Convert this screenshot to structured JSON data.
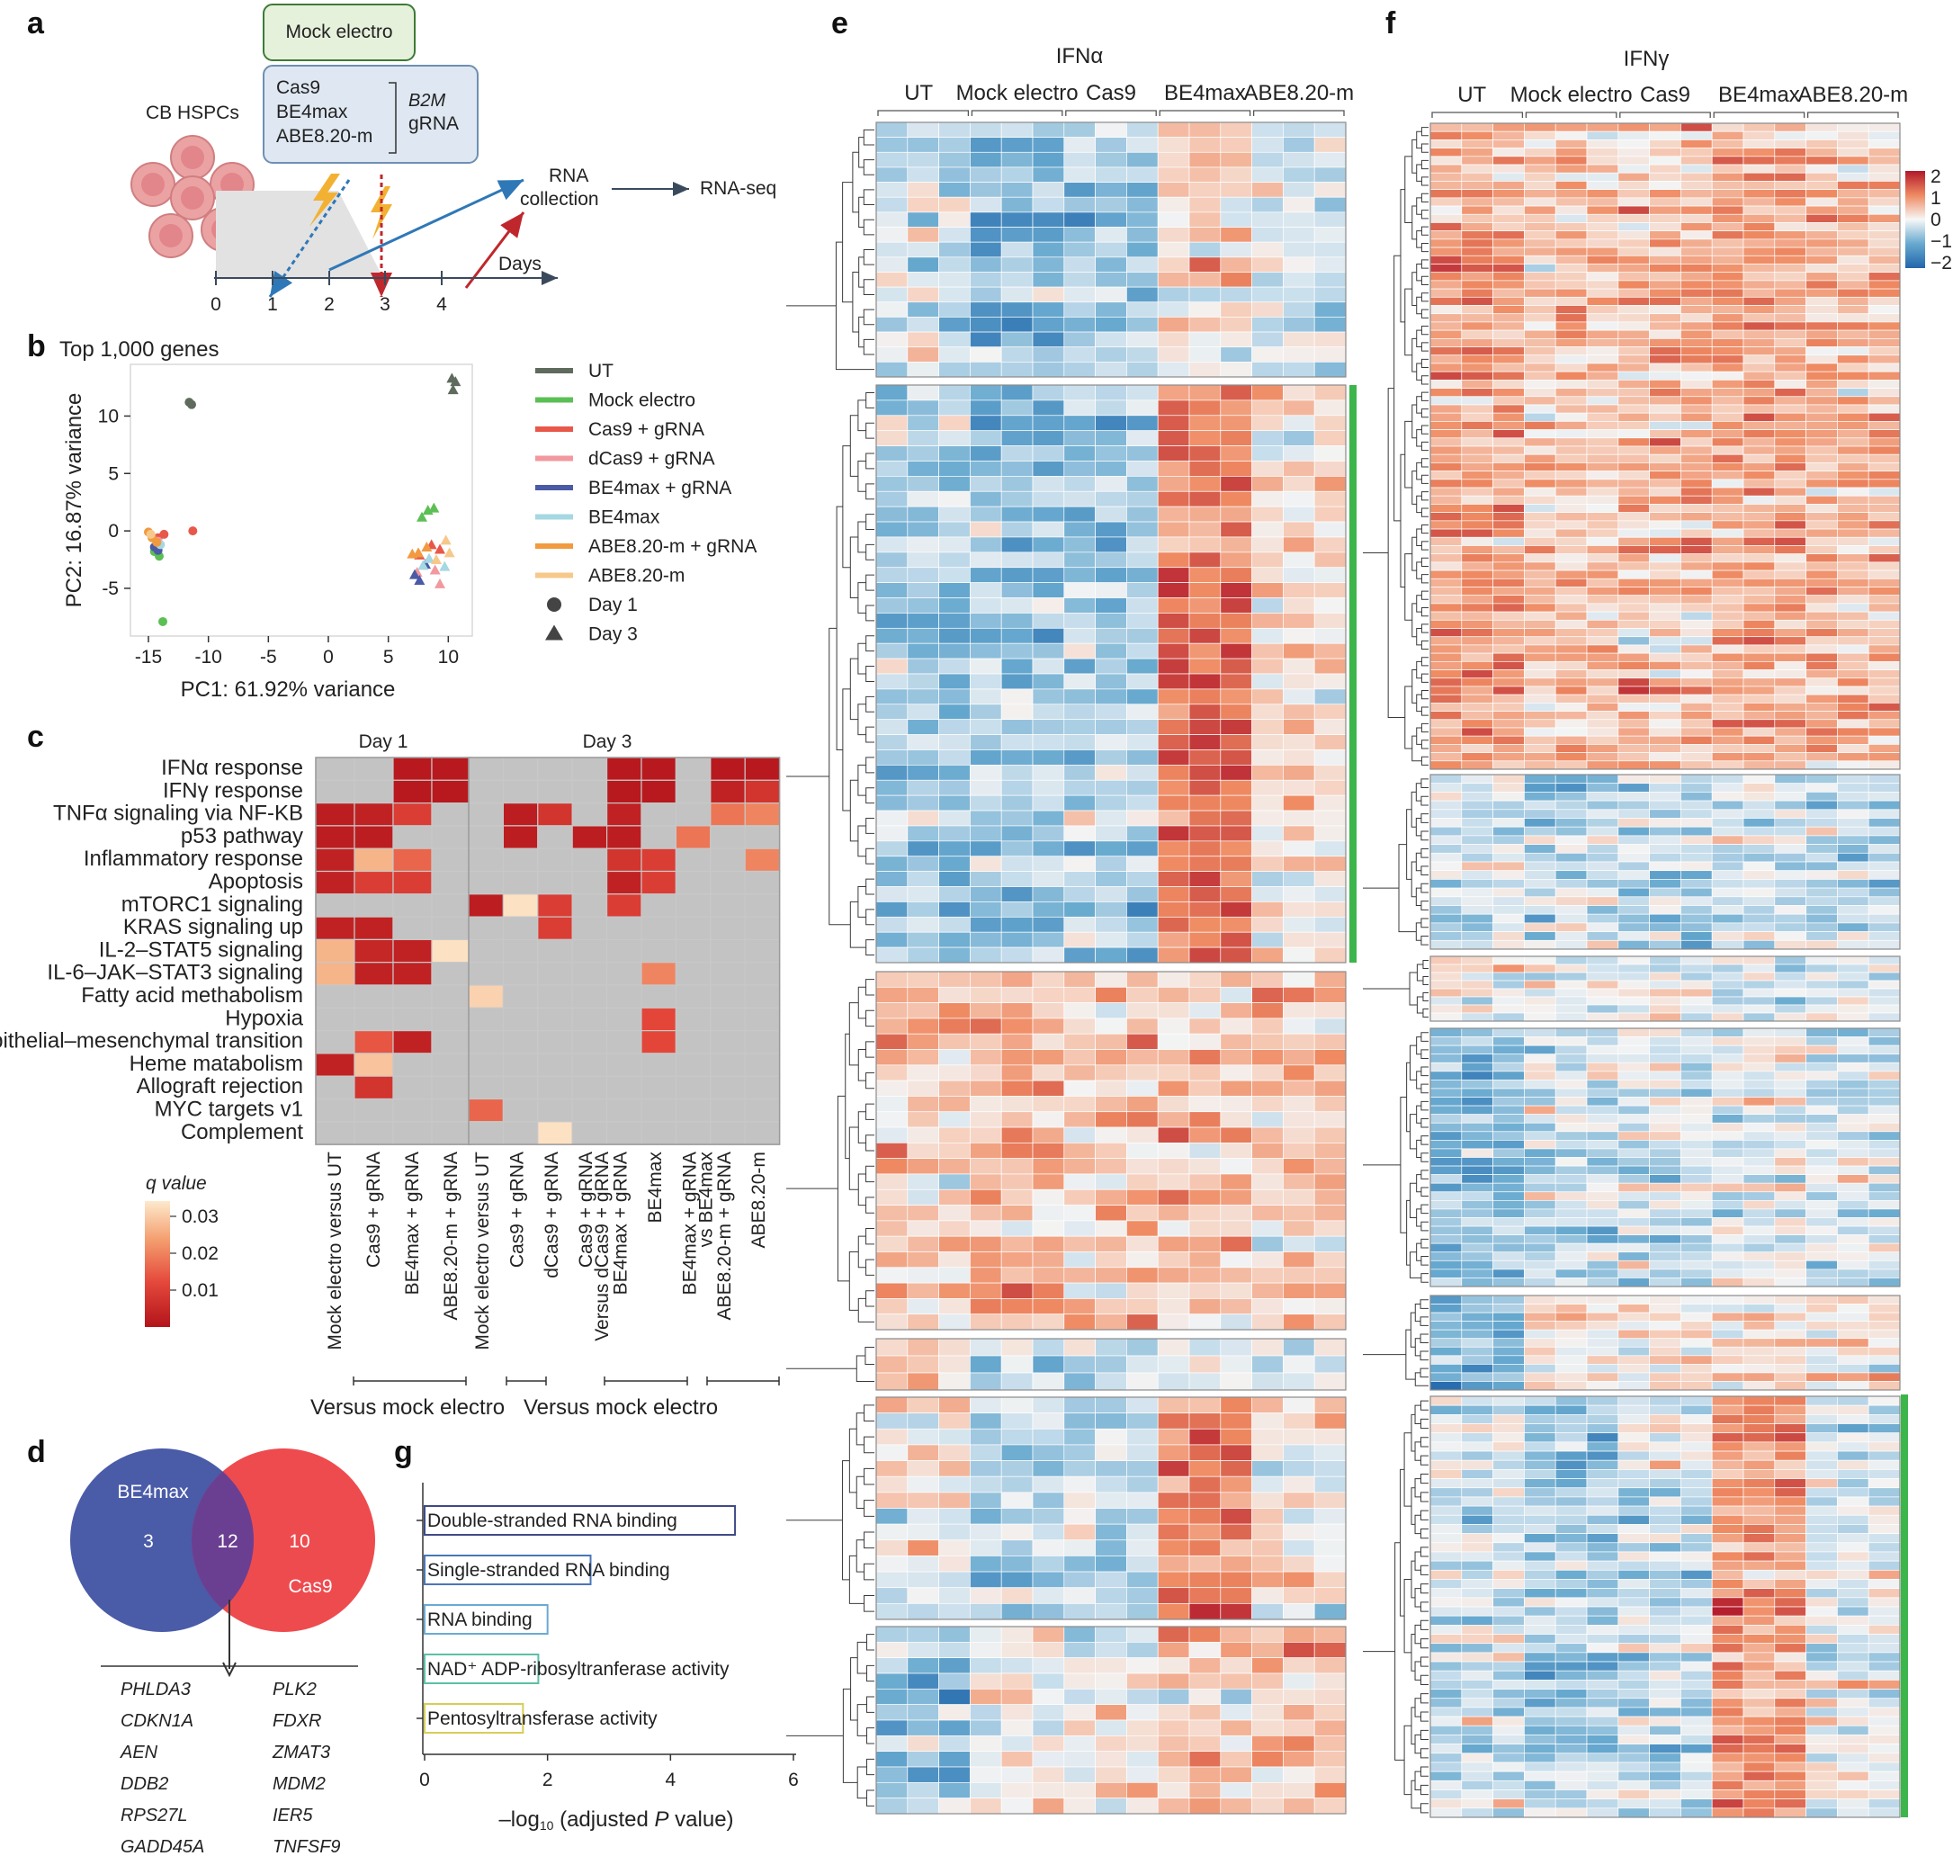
{
  "panel_labels": [
    "a",
    "b",
    "c",
    "d",
    "e",
    "f",
    "g"
  ],
  "panel_a": {
    "mock_label": "Mock electro",
    "editors": [
      "Cas9",
      "BE4max",
      "ABE8.20-m"
    ],
    "gene": "B2M",
    "gene_suffix": "gRNA",
    "cells_label": "CB HSPCs",
    "rna_collection_1": "RNA",
    "rna_collection_2": "collection",
    "rna_seq": "RNA-seq",
    "days_label": "Days",
    "ticks": [
      "0",
      "1",
      "2",
      "3",
      "4"
    ]
  },
  "colors": {
    "ut": "#5f6b5d",
    "mock": "#5cbf55",
    "cas9_grna": "#e8584a",
    "dcas9_grna": "#f2989f",
    "be4max_grna": "#4b5aa5",
    "be4max": "#a5d8e2",
    "abe_grna": "#f29a3f",
    "abe": "#f6c88a",
    "green_bar": "#3cb54a",
    "venn_blue": "#4a5ba8",
    "venn_red": "#ee4b4f",
    "venn_overlap": "#6a3f92"
  },
  "chart_data": [
    {
      "id": "b",
      "type": "scatter",
      "title": "Top 1,000 genes",
      "xlabel": "PC1: 61.92% variance",
      "ylabel": "PC2: 16.87% variance",
      "xlim": [
        -16.5,
        12
      ],
      "ylim": [
        -9,
        14.5
      ],
      "xticks": [
        -15,
        -10,
        -5,
        0,
        5,
        10
      ],
      "yticks": [
        -5,
        0,
        5,
        10
      ],
      "legend": [
        "UT",
        "Mock electro",
        "Cas9 + gRNA",
        "dCas9 + gRNA",
        "BE4max + gRNA",
        "BE4max",
        "ABE8.20-m + gRNA",
        "ABE8.20-m",
        "Day 1",
        "Day 3"
      ],
      "legend_colors": [
        "#5f6b5d",
        "#5cbf55",
        "#e8584a",
        "#f2989f",
        "#4b5aa5",
        "#a5d8e2",
        "#f29a3f",
        "#f6c88a"
      ],
      "series": [
        {
          "name": "UT",
          "day1": [
            [
              -11.6,
              11.2
            ],
            [
              -11.4,
              11.0
            ]
          ],
          "day3": [
            [
              10.3,
              13.3
            ],
            [
              10.6,
              13.0
            ],
            [
              10.4,
              12.3
            ]
          ]
        },
        {
          "name": "Mock electro",
          "day1": [
            [
              -14.1,
              -2.2
            ],
            [
              -13.8,
              -7.9
            ],
            [
              -14.5,
              -1.8
            ]
          ],
          "day3": [
            [
              8.3,
              1.8
            ],
            [
              8.8,
              2.0
            ],
            [
              7.8,
              1.2
            ]
          ]
        },
        {
          "name": "Cas9 + gRNA",
          "day1": [
            [
              -11.3,
              0.0
            ],
            [
              -13.7,
              -0.3
            ],
            [
              -14.2,
              -0.6
            ]
          ],
          "day3": [
            [
              8.6,
              -1.2
            ],
            [
              9.3,
              -1.6
            ],
            [
              7.6,
              -2.1
            ]
          ]
        },
        {
          "name": "dCas9 + gRNA",
          "day1": [
            [
              -14.2,
              -0.9
            ]
          ],
          "day3": [
            [
              8.9,
              -3.4
            ],
            [
              9.3,
              -4.6
            ],
            [
              7.4,
              -3.6
            ]
          ]
        },
        {
          "name": "BE4max + gRNA",
          "day1": [
            [
              -14.5,
              -1.4
            ],
            [
              -14.2,
              -1.7
            ]
          ],
          "day3": [
            [
              7.2,
              -3.8
            ],
            [
              7.6,
              -4.3
            ],
            [
              8.1,
              -2.9
            ]
          ]
        },
        {
          "name": "BE4max",
          "day1": [
            [
              -14.0,
              -1.2
            ]
          ],
          "day3": [
            [
              9.7,
              -3.1
            ],
            [
              7.9,
              -3.0
            ],
            [
              8.4,
              -2.4
            ]
          ]
        },
        {
          "name": "ABE8.20-m + gRNA",
          "day1": [
            [
              -15.0,
              -0.1
            ],
            [
              -14.7,
              -0.6
            ],
            [
              -14.3,
              -1.0
            ]
          ],
          "day3": [
            [
              7.0,
              -2.0
            ],
            [
              7.5,
              -1.9
            ],
            [
              8.2,
              -1.4
            ]
          ]
        },
        {
          "name": "ABE8.20-m",
          "day1": [
            [
              -14.8,
              -0.3
            ]
          ],
          "day3": [
            [
              9.8,
              -0.8
            ],
            [
              9.0,
              -2.5
            ],
            [
              10.1,
              -1.9
            ]
          ]
        }
      ]
    },
    {
      "id": "c",
      "type": "heatmap",
      "day1_title": "Day 1",
      "day3_title": "Day 3",
      "rows": [
        "IFNα response",
        "IFNγ response",
        "TNFα signaling via NF-KB",
        "p53 pathway",
        "Inflammatory response",
        "Apoptosis",
        "mTORC1 signaling",
        "KRAS signaling up",
        "IL-2–STAT5 signaling",
        "IL-6–JAK–STAT3 signaling",
        "Fatty acid methabolism",
        "Hypoxia",
        "Epithelial–mesenchymal transition",
        "Heme matabolism",
        "Allograft rejection",
        "MYC targets v1",
        "Complement"
      ],
      "day1_columns": [
        "Mock electro versus UT",
        "Cas9 + gRNA",
        "BE4max + gRNA",
        "ABE8.20-m + gRNA"
      ],
      "day3_columns": [
        "Mock electro versus UT",
        "Cas9 + gRNA",
        "dCas9 + gRNA",
        "Cas9 + gRNA",
        "Versus dCas9 + gRNA",
        "BE4max + gRNA",
        "BE4max",
        "BE4max + gRNA",
        "vs BE4max",
        "ABE8.20-m + gRNA",
        "ABE8.20-m"
      ],
      "day3_column_slots": [
        0,
        1,
        2,
        3,
        3,
        4,
        5,
        6,
        6,
        7,
        8
      ],
      "bracket_label_1": "Versus mock electro",
      "bracket_label_2": "Versus mock electro",
      "colorbar_title": "q value",
      "colorbar_ticks": [
        "0.03",
        "0.02",
        "0.01"
      ],
      "q_range": [
        0.003,
        0.035
      ],
      "day1_values": [
        [
          null,
          null,
          0.004,
          0.004
        ],
        [
          null,
          null,
          0.004,
          0.004
        ],
        [
          0.005,
          0.006,
          0.012,
          null
        ],
        [
          0.005,
          0.005,
          null,
          null
        ],
        [
          0.006,
          0.028,
          0.018,
          null
        ],
        [
          0.006,
          0.012,
          0.012,
          null
        ],
        [
          null,
          null,
          null,
          null
        ],
        [
          0.006,
          0.006,
          null,
          null
        ],
        [
          0.028,
          0.007,
          0.006,
          0.034
        ],
        [
          0.028,
          0.006,
          0.006,
          null
        ],
        [
          null,
          null,
          null,
          null
        ],
        [
          null,
          null,
          null,
          null
        ],
        [
          null,
          0.016,
          0.006,
          null
        ],
        [
          0.006,
          0.03,
          null,
          null
        ],
        [
          null,
          0.01,
          null,
          null
        ],
        [
          null,
          null,
          null,
          null
        ],
        [
          null,
          null,
          null,
          null
        ]
      ],
      "day3_values": [
        [
          null,
          null,
          null,
          null,
          0.004,
          0.004,
          null,
          0.004,
          0.004
        ],
        [
          null,
          null,
          null,
          null,
          0.004,
          0.004,
          null,
          0.006,
          0.01
        ],
        [
          null,
          0.005,
          0.01,
          null,
          0.006,
          null,
          null,
          0.02,
          0.022
        ],
        [
          null,
          0.005,
          null,
          0.005,
          0.005,
          null,
          0.02,
          null,
          null
        ],
        [
          null,
          null,
          null,
          null,
          0.01,
          0.012,
          null,
          null,
          0.022
        ],
        [
          null,
          null,
          null,
          null,
          0.006,
          0.012,
          null,
          null,
          null
        ],
        [
          0.005,
          0.034,
          0.012,
          null,
          0.012,
          null,
          null,
          null,
          null
        ],
        [
          null,
          null,
          0.012,
          null,
          null,
          null,
          null,
          null,
          null
        ],
        [
          null,
          null,
          null,
          null,
          null,
          null,
          null,
          null,
          null
        ],
        [
          null,
          null,
          null,
          null,
          null,
          0.022,
          null,
          null,
          null
        ],
        [
          0.032,
          null,
          null,
          null,
          null,
          null,
          null,
          null,
          null
        ],
        [
          null,
          null,
          null,
          null,
          null,
          0.014,
          null,
          null,
          null
        ],
        [
          null,
          null,
          null,
          null,
          null,
          0.014,
          null,
          null,
          null
        ],
        [
          null,
          null,
          null,
          null,
          null,
          null,
          null,
          null,
          null
        ],
        [
          null,
          null,
          null,
          null,
          null,
          null,
          null,
          null,
          null
        ],
        [
          0.018,
          null,
          null,
          null,
          null,
          null,
          null,
          null,
          null
        ],
        [
          null,
          null,
          0.034,
          null,
          null,
          null,
          null,
          null,
          null
        ]
      ]
    },
    {
      "id": "d",
      "type": "venn",
      "sets": [
        {
          "name": "BE4max",
          "only": "3"
        },
        {
          "name": "Cas9",
          "only": "10"
        }
      ],
      "overlap": "12",
      "genes_left": [
        "PHLDA3",
        "CDKN1A",
        "AEN",
        "DDB2",
        "RPS27L",
        "GADD45A"
      ],
      "genes_right": [
        "PLK2",
        "FDXR",
        "ZMAT3",
        "MDM2",
        "IER5",
        "TNFSF9"
      ]
    },
    {
      "id": "g",
      "type": "bar",
      "orientation": "horizontal",
      "categories": [
        "Double-stranded RNA binding",
        "Single-stranded RNA binding",
        "RNA binding",
        "NAD⁺ ADP-ribosyltranferase activity",
        "Pentosyltransferase activity"
      ],
      "values": [
        5.05,
        2.7,
        2.0,
        1.85,
        1.6
      ],
      "bar_colors": [
        "#3f4a86",
        "#4a76b8",
        "#6aaad4",
        "#5dbfa6",
        "#d7cd57"
      ],
      "xlabel_pre": "–log",
      "xlabel_sub": "10",
      "xlabel_mid": " (adjusted ",
      "xlabel_p": "P",
      "xlabel_post": " value)",
      "xticks": [
        0,
        2,
        4,
        6
      ],
      "xlim": [
        0,
        6
      ]
    },
    {
      "id": "e",
      "type": "heatmap",
      "title": "IFNα",
      "groups": [
        "UT",
        "Mock electro",
        "Cas9",
        "BE4max",
        "ABE8.20-m"
      ],
      "rows": 68,
      "columns": 15,
      "color_range": [
        -2,
        2
      ]
    },
    {
      "id": "f",
      "type": "heatmap",
      "title": "IFNγ",
      "groups": [
        "UT",
        "Mock electro",
        "Cas9",
        "BE4max",
        "ABE8.20-m"
      ],
      "rows": 154,
      "columns": 15,
      "color_range": [
        -2,
        2
      ],
      "colorbar_ticks": [
        "2",
        "1",
        "0",
        "−1",
        "−2"
      ]
    }
  ]
}
